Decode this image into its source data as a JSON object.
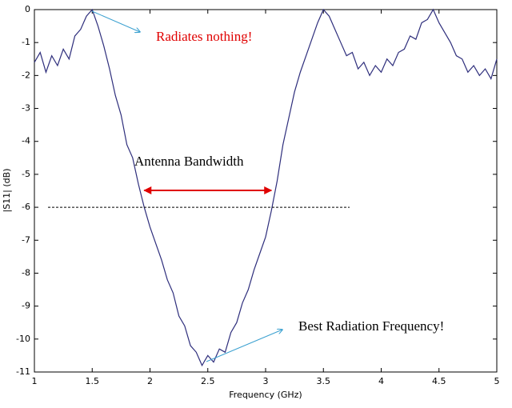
{
  "chart_data": {
    "type": "line",
    "xlabel": "Frequency (GHz)",
    "ylabel": "|S11| (dB)",
    "x": [
      1.0,
      1.05,
      1.1,
      1.15,
      1.2,
      1.25,
      1.3,
      1.35,
      1.4,
      1.45,
      1.5,
      1.55,
      1.6,
      1.65,
      1.7,
      1.75,
      1.8,
      1.85,
      1.9,
      1.95,
      2.0,
      2.05,
      2.1,
      2.15,
      2.2,
      2.25,
      2.3,
      2.35,
      2.4,
      2.45,
      2.5,
      2.55,
      2.6,
      2.65,
      2.7,
      2.75,
      2.8,
      2.85,
      2.9,
      2.95,
      3.0,
      3.05,
      3.1,
      3.15,
      3.2,
      3.25,
      3.3,
      3.35,
      3.4,
      3.45,
      3.5,
      3.55,
      3.6,
      3.65,
      3.7,
      3.75,
      3.8,
      3.85,
      3.9,
      3.95,
      4.0,
      4.05,
      4.1,
      4.15,
      4.2,
      4.25,
      4.3,
      4.35,
      4.4,
      4.45,
      4.5,
      4.55,
      4.6,
      4.65,
      4.7,
      4.75,
      4.8,
      4.85,
      4.9,
      4.95,
      5.0
    ],
    "series": [
      {
        "color": "#2e2e7c",
        "values": [
          -1.6,
          -1.3,
          -1.9,
          -1.4,
          -1.7,
          -1.2,
          -1.5,
          -0.8,
          -0.6,
          -0.2,
          0,
          -0.5,
          -1.1,
          -1.8,
          -2.6,
          -3.2,
          -4.1,
          -4.5,
          -5.3,
          -6.0,
          -6.6,
          -7.1,
          -7.6,
          -8.2,
          -8.6,
          -9.3,
          -9.6,
          -10.2,
          -10.4,
          -10.8,
          -10.5,
          -10.7,
          -10.3,
          -10.4,
          -9.8,
          -9.5,
          -8.9,
          -8.5,
          -7.9,
          -7.4,
          -6.9,
          -6.1,
          -5.2,
          -4.1,
          -3.3,
          -2.5,
          -1.9,
          -1.4,
          -0.9,
          -0.4,
          0,
          -0.2,
          -0.6,
          -1.0,
          -1.4,
          -1.3,
          -1.8,
          -1.6,
          -2.0,
          -1.7,
          -1.9,
          -1.5,
          -1.7,
          -1.3,
          -1.2,
          -0.8,
          -0.9,
          -0.4,
          -0.3,
          0,
          -0.4,
          -0.7,
          -1.0,
          -1.4,
          -1.5,
          -1.9,
          -1.7,
          -2.0,
          -1.8,
          -2.1,
          -1.5
        ]
      }
    ],
    "xlim": [
      1,
      5
    ],
    "xticks": [
      1,
      1.5,
      2,
      2.5,
      3,
      3.5,
      4,
      4.5,
      5
    ],
    "ylim": [
      -11,
      0
    ],
    "yticks": [
      0,
      -1,
      -2,
      -3,
      -4,
      -5,
      -6,
      -7,
      -8,
      -9,
      -10,
      -11
    ],
    "grid": false,
    "threshold": -6,
    "bandwidth": [
      1.95,
      3.05
    ],
    "annotations": [
      {
        "text": "Radiates nothing!",
        "color": "#e00000"
      },
      {
        "text": "Antenna Bandwidth",
        "color": "#000000"
      },
      {
        "text": "Best Radiation Frequency!",
        "color": "#000000"
      }
    ]
  }
}
